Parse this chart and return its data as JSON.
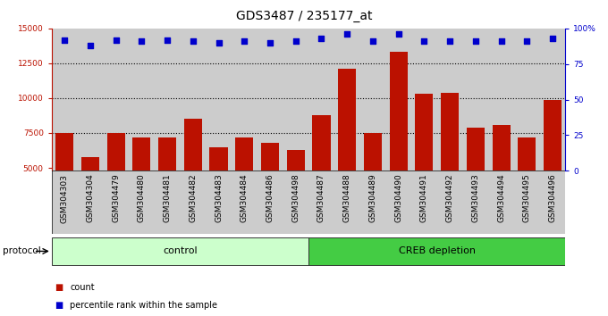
{
  "title": "GDS3487 / 235177_at",
  "samples": [
    "GSM304303",
    "GSM304304",
    "GSM304479",
    "GSM304480",
    "GSM304481",
    "GSM304482",
    "GSM304483",
    "GSM304484",
    "GSM304486",
    "GSM304498",
    "GSM304487",
    "GSM304488",
    "GSM304489",
    "GSM304490",
    "GSM304491",
    "GSM304492",
    "GSM304493",
    "GSM304494",
    "GSM304495",
    "GSM304496"
  ],
  "counts": [
    7500,
    5800,
    7500,
    7200,
    7200,
    8500,
    6500,
    7200,
    6800,
    6300,
    8800,
    12100,
    7500,
    13300,
    10300,
    10400,
    7900,
    8100,
    7200,
    9900
  ],
  "percentiles": [
    92,
    88,
    92,
    91,
    92,
    91,
    90,
    91,
    90,
    91,
    93,
    96,
    91,
    96,
    91,
    91,
    91,
    91,
    91,
    93
  ],
  "control_count": 10,
  "creb_count": 10,
  "control_label": "control",
  "creb_label": "CREB depletion",
  "protocol_label": "protocol",
  "ylim_left": [
    4800,
    15000
  ],
  "yticks_left": [
    5000,
    7500,
    10000,
    12500,
    15000
  ],
  "ylim_right": [
    0,
    100
  ],
  "yticks_right": [
    0,
    25,
    50,
    75,
    100
  ],
  "bar_color": "#bb1100",
  "dot_color": "#0000cc",
  "control_bg": "#ccffcc",
  "creb_bg": "#44cc44",
  "sample_bg": "#cccccc",
  "legend_count_label": "count",
  "legend_pct_label": "percentile rank within the sample",
  "title_fontsize": 10,
  "tick_fontsize": 6.5,
  "label_fontsize": 8,
  "hline_values": [
    7500,
    10000,
    12500
  ],
  "right_axis_label_100": "100%"
}
